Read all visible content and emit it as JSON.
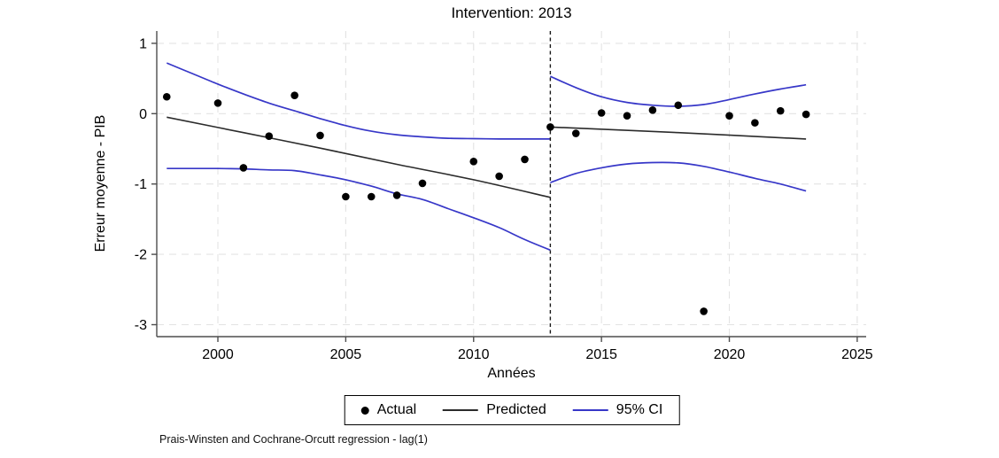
{
  "title": "Intervention: 2013",
  "axes": {
    "ylabel": "Erreur moyenne - PIB",
    "xlabel": "Années"
  },
  "note": "Prais-Winsten and Cochrane-Orcutt regression - lag(1)",
  "colors": {
    "actual": "#000000",
    "predicted": "#2b2b2b",
    "ci": "#3737c8",
    "grid": "#e3e3e3",
    "axis": "#4d4d4d",
    "intervention_line": "#1a1a1a"
  },
  "chart_data": {
    "type": "scatter",
    "title": "Intervention: 2013",
    "xlabel": "Années",
    "ylabel": "Erreur moyenne - PIB",
    "xlim": [
      1997.61,
      2025.35
    ],
    "ylim": [
      -3.17,
      1.175
    ],
    "xticks": [
      2000,
      2005,
      2010,
      2015,
      2020,
      2025
    ],
    "yticks": [
      1,
      0,
      -1,
      -2,
      -3
    ],
    "grid": "dashed",
    "intervention_year": 2013,
    "legend_position": "bottom-center",
    "legend": [
      {
        "label": "Actual",
        "swatch": "dot"
      },
      {
        "label": "Predicted",
        "swatch": "line"
      },
      {
        "label": "95% CI",
        "swatch": "line-ci"
      }
    ],
    "actual_points": [
      [
        1998,
        0.24
      ],
      [
        2000,
        0.15
      ],
      [
        2001,
        -0.77
      ],
      [
        2002,
        -0.32
      ],
      [
        2003,
        0.26
      ],
      [
        2004,
        -0.31
      ],
      [
        2005,
        -1.18
      ],
      [
        2006,
        -1.18
      ],
      [
        2007,
        -1.16
      ],
      [
        2008,
        -0.99
      ],
      [
        2010,
        -0.68
      ],
      [
        2011,
        -0.89
      ],
      [
        2012,
        -0.65
      ],
      [
        2013,
        -0.19
      ],
      [
        2014,
        -0.28
      ],
      [
        2015,
        0.01
      ],
      [
        2016,
        -0.03
      ],
      [
        2017,
        0.05
      ],
      [
        2018,
        0.12
      ],
      [
        2019,
        -2.81
      ],
      [
        2020,
        -0.03
      ],
      [
        2021,
        -0.13
      ],
      [
        2022,
        0.04
      ],
      [
        2023,
        -0.01
      ]
    ],
    "predicted_pre": [
      [
        1998,
        -0.05
      ],
      [
        2001,
        -0.27
      ],
      [
        2004,
        -0.49
      ],
      [
        2007,
        -0.72
      ],
      [
        2010,
        -0.94
      ],
      [
        2013,
        -1.19
      ]
    ],
    "predicted_post": [
      [
        2013,
        -0.19
      ],
      [
        2018,
        -0.27
      ],
      [
        2023,
        -0.36
      ]
    ],
    "ci_upper_pre": [
      [
        1998,
        0.72
      ],
      [
        1999,
        0.57
      ],
      [
        2000,
        0.42
      ],
      [
        2001,
        0.28
      ],
      [
        2002,
        0.15
      ],
      [
        2003,
        0.04
      ],
      [
        2004,
        -0.07
      ],
      [
        2005,
        -0.17
      ],
      [
        2006,
        -0.25
      ],
      [
        2007,
        -0.3
      ],
      [
        2008,
        -0.33
      ],
      [
        2009,
        -0.35
      ],
      [
        2010,
        -0.355
      ],
      [
        2011,
        -0.36
      ],
      [
        2012,
        -0.36
      ],
      [
        2013,
        -0.36
      ]
    ],
    "ci_lower_pre": [
      [
        1998,
        -0.78
      ],
      [
        1999,
        -0.78
      ],
      [
        2000,
        -0.78
      ],
      [
        2001,
        -0.785
      ],
      [
        2002,
        -0.8
      ],
      [
        2003,
        -0.81
      ],
      [
        2004,
        -0.87
      ],
      [
        2005,
        -0.94
      ],
      [
        2006,
        -1.03
      ],
      [
        2007,
        -1.14
      ],
      [
        2008,
        -1.22
      ],
      [
        2009,
        -1.35
      ],
      [
        2010,
        -1.48
      ],
      [
        2011,
        -1.62
      ],
      [
        2012,
        -1.79
      ],
      [
        2013,
        -1.94
      ]
    ],
    "ci_upper_post": [
      [
        2013,
        0.53
      ],
      [
        2014,
        0.37
      ],
      [
        2015,
        0.24
      ],
      [
        2016,
        0.16
      ],
      [
        2017,
        0.12
      ],
      [
        2018,
        0.105
      ],
      [
        2019,
        0.13
      ],
      [
        2020,
        0.2
      ],
      [
        2021,
        0.28
      ],
      [
        2022,
        0.35
      ],
      [
        2023,
        0.41
      ]
    ],
    "ci_lower_post": [
      [
        2013,
        -0.98
      ],
      [
        2014,
        -0.85
      ],
      [
        2015,
        -0.77
      ],
      [
        2016,
        -0.715
      ],
      [
        2017,
        -0.695
      ],
      [
        2018,
        -0.7
      ],
      [
        2019,
        -0.75
      ],
      [
        2020,
        -0.83
      ],
      [
        2021,
        -0.92
      ],
      [
        2022,
        -1.0
      ],
      [
        2023,
        -1.1
      ]
    ]
  }
}
